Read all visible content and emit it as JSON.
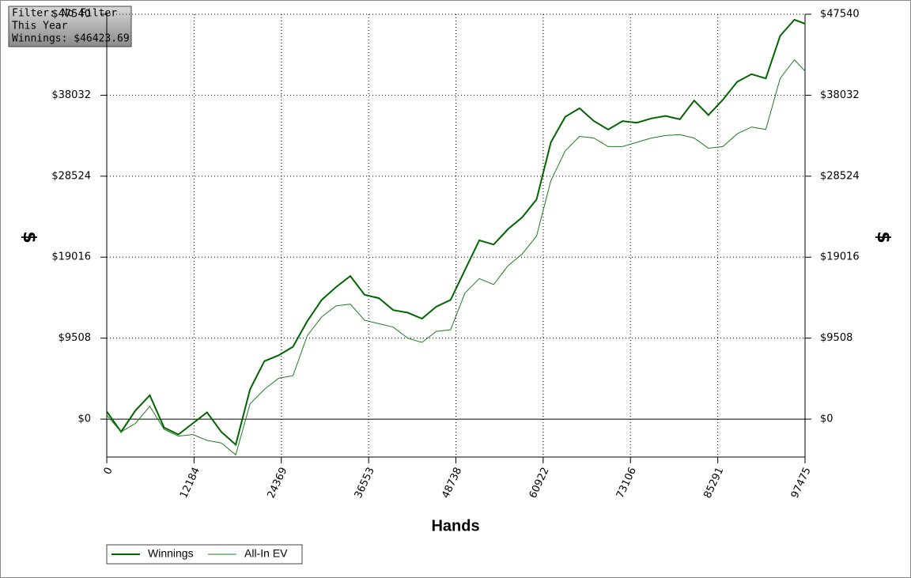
{
  "chart_data": {
    "type": "line",
    "annotations": [
      "Filter: No Filter",
      "This Year",
      "Winnings: $46423.69"
    ],
    "xlabel": "Hands",
    "ylabel": "$",
    "y2label": "$",
    "x": [
      0,
      2000,
      4000,
      6000,
      8000,
      10000,
      12000,
      14000,
      16000,
      18000,
      20000,
      22000,
      24000,
      26000,
      28000,
      30000,
      32000,
      34000,
      36000,
      38000,
      40000,
      42000,
      44000,
      46000,
      48000,
      50000,
      52000,
      54000,
      56000,
      58000,
      60000,
      62000,
      64000,
      66000,
      68000,
      70000,
      72000,
      74000,
      76000,
      78000,
      80000,
      82000,
      84000,
      86000,
      88000,
      90000,
      92000,
      94000,
      96000,
      97475
    ],
    "series": [
      {
        "name": "Winnings",
        "color": "#006400",
        "values": [
          900,
          -1500,
          1000,
          2800,
          -1000,
          -1800,
          -500,
          800,
          -1500,
          -3000,
          3500,
          6800,
          7500,
          8500,
          11500,
          14000,
          15500,
          16800,
          14600,
          14200,
          12800,
          12500,
          11800,
          13200,
          14000,
          17500,
          21000,
          20500,
          22300,
          23700,
          25800,
          32500,
          35500,
          36500,
          35000,
          34000,
          35000,
          34800,
          35300,
          35600,
          35200,
          37400,
          35700,
          37500,
          39600,
          40500,
          40000,
          45000,
          46900,
          46424
        ]
      },
      {
        "name": "All-In EV",
        "color": "#1e7b1e",
        "values": [
          460,
          -1500,
          -500,
          1500,
          -1200,
          -2000,
          -1800,
          -2500,
          -2800,
          -4200,
          1800,
          3500,
          4800,
          5100,
          9800,
          12000,
          13300,
          13500,
          11600,
          11200,
          10800,
          9500,
          9000,
          10300,
          10500,
          14800,
          16500,
          15800,
          18000,
          19400,
          21500,
          28000,
          31500,
          33200,
          33000,
          32000,
          32000,
          32500,
          33000,
          33300,
          33400,
          33000,
          31800,
          32000,
          33500,
          34300,
          34000,
          40000,
          42200,
          40850
        ]
      }
    ],
    "xlim": [
      0,
      97475
    ],
    "xticks": [
      0,
      12184,
      24369,
      36553,
      48738,
      60922,
      73106,
      85291,
      97475
    ],
    "ylim": [
      -4450,
      47540
    ],
    "yticks": [
      {
        "value": 0,
        "label": "$0"
      },
      {
        "value": 9508,
        "label": "$9508"
      },
      {
        "value": 19016,
        "label": "$19016"
      },
      {
        "value": 28524,
        "label": "$28524"
      },
      {
        "value": 38032,
        "label": "$38032"
      },
      {
        "value": 47540,
        "label": "$47540"
      }
    ],
    "grid": true,
    "legend": "bottom-left"
  }
}
